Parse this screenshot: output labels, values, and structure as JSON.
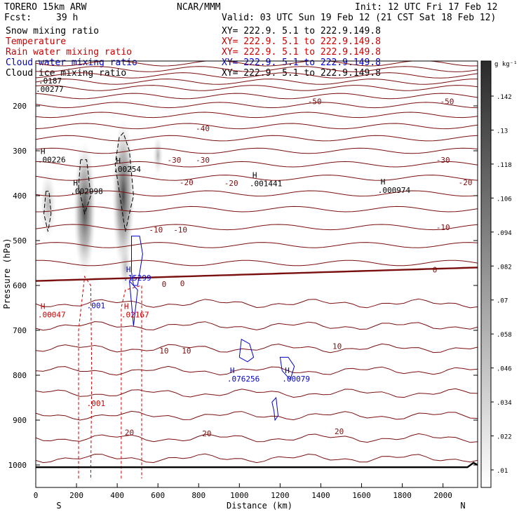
{
  "header": {
    "model": "TORERO  15km ARW",
    "org": "NCAR/MMM",
    "init": "Init: 12 UTC Fri 17 Feb 12",
    "fcst_label": "Fcst:",
    "fcst_value": "39 h",
    "valid": "Valid: 03 UTC Sun 19 Feb 12 (21 CST Sat 18 Feb 12)"
  },
  "legend": [
    {
      "label": "Snow mixing ratio",
      "color": "#000000",
      "xy": "XY= 222.9.  5.1 to 222.9.149.8"
    },
    {
      "label": "Temperature",
      "color": "#cc0000",
      "xy": "XY= 222.9.  5.1 to 222.9.149.8"
    },
    {
      "label": "Rain water mixing ratio",
      "color": "#cc0000",
      "xy": "XY= 222.9.  5.1 to 222.9.149.8"
    },
    {
      "label": "Cloud water mixing ratio",
      "color": "#0000cc",
      "xy": "XY= 222.9.  5.1 to 222.9.149.8"
    },
    {
      "label": "Cloud ice mixing ratio",
      "color": "#000000",
      "xy": "XY= 222.9.  5.1 to 222.9.149.8"
    }
  ],
  "colors": {
    "temperature": "#7a0f0f",
    "rain": "#cc0000",
    "cloud_water": "#0000cc",
    "snow": "#000000"
  },
  "chart_data": {
    "type": "cross-section",
    "xlabel": "Distance (km)",
    "ylabel": "Pressure (hPa)",
    "xlim": [
      0,
      2170
    ],
    "ylim": [
      1050,
      100
    ],
    "xticks": [
      0,
      200,
      400,
      600,
      800,
      1000,
      1200,
      1400,
      1600,
      1800,
      2000
    ],
    "yticks": [
      200,
      300,
      400,
      500,
      600,
      700,
      800,
      900,
      1000
    ],
    "x_ends": {
      "left": "S",
      "right": "N"
    },
    "colorbar": {
      "unit": "g kg⁻¹",
      "ticks": [
        ".01",
        ".022",
        ".034",
        ".046",
        ".058",
        ".07",
        ".082",
        ".094",
        ".106",
        ".118",
        ".13",
        ".142"
      ]
    },
    "temperature_labels": [
      {
        "text": "-50",
        "x": 1370,
        "p": 190
      },
      {
        "text": "-50",
        "x": 2020,
        "p": 190
      },
      {
        "text": "-40",
        "x": 820,
        "p": 250
      },
      {
        "text": "-30",
        "x": 680,
        "p": 320
      },
      {
        "text": "-30",
        "x": 820,
        "p": 320
      },
      {
        "text": "-30",
        "x": 2000,
        "p": 320
      },
      {
        "text": "-20",
        "x": 740,
        "p": 370
      },
      {
        "text": "-20",
        "x": 960,
        "p": 372
      },
      {
        "text": "-20",
        "x": 2110,
        "p": 370
      },
      {
        "text": "-10",
        "x": 590,
        "p": 476
      },
      {
        "text": "-10",
        "x": 710,
        "p": 476
      },
      {
        "text": "-10",
        "x": 2000,
        "p": 470
      },
      {
        "text": "0",
        "x": 630,
        "p": 597
      },
      {
        "text": "0",
        "x": 720,
        "p": 595
      },
      {
        "text": "0",
        "x": 1960,
        "p": 565
      },
      {
        "text": "10",
        "x": 630,
        "p": 745
      },
      {
        "text": "10",
        "x": 740,
        "p": 745
      },
      {
        "text": "10",
        "x": 1480,
        "p": 735
      },
      {
        "text": "20",
        "x": 460,
        "p": 927
      },
      {
        "text": "20",
        "x": 840,
        "p": 930
      },
      {
        "text": "20",
        "x": 1490,
        "p": 925
      }
    ],
    "maxima": [
      {
        "label": "H",
        "value": ".00226",
        "x": 10,
        "p": 312,
        "color": "#000000"
      },
      {
        "label": "H",
        "value": ".00254",
        "x": 380,
        "p": 333,
        "color": "#000000"
      },
      {
        "label": ".0187",
        "value": ".00277",
        "x": 0,
        "p": 155,
        "color": "#000000"
      },
      {
        "label": "H",
        "value": ".002998",
        "x": 170,
        "p": 382,
        "color": "#000000"
      },
      {
        "label": "H",
        "value": ".001441",
        "x": 1050,
        "p": 365,
        "color": "#000000"
      },
      {
        "label": "H",
        "value": ".000974",
        "x": 1680,
        "p": 380,
        "color": "#000000"
      },
      {
        "label": "H",
        "value": ".15299",
        "x": 430,
        "p": 575,
        "color": "#0000cc"
      },
      {
        "label": "H",
        "value": ".00047",
        "x": 10,
        "p": 657,
        "color": "#cc0000"
      },
      {
        "label": "H",
        "value": ".02167",
        "x": 420,
        "p": 657,
        "color": "#cc0000"
      },
      {
        "label": ".001",
        "value": ".001",
        "x": 250,
        "p": 637,
        "color": "#0000cc"
      },
      {
        "label": ".001",
        "value": ".001",
        "x": 250,
        "p": 855,
        "color": "#cc0000"
      },
      {
        "label": "H",
        "value": ".076256",
        "x": 940,
        "p": 800,
        "color": "#0000cc"
      },
      {
        "label": "H",
        "value": ".00079",
        "x": 1210,
        "p": 800,
        "color": "#0000cc"
      }
    ]
  }
}
